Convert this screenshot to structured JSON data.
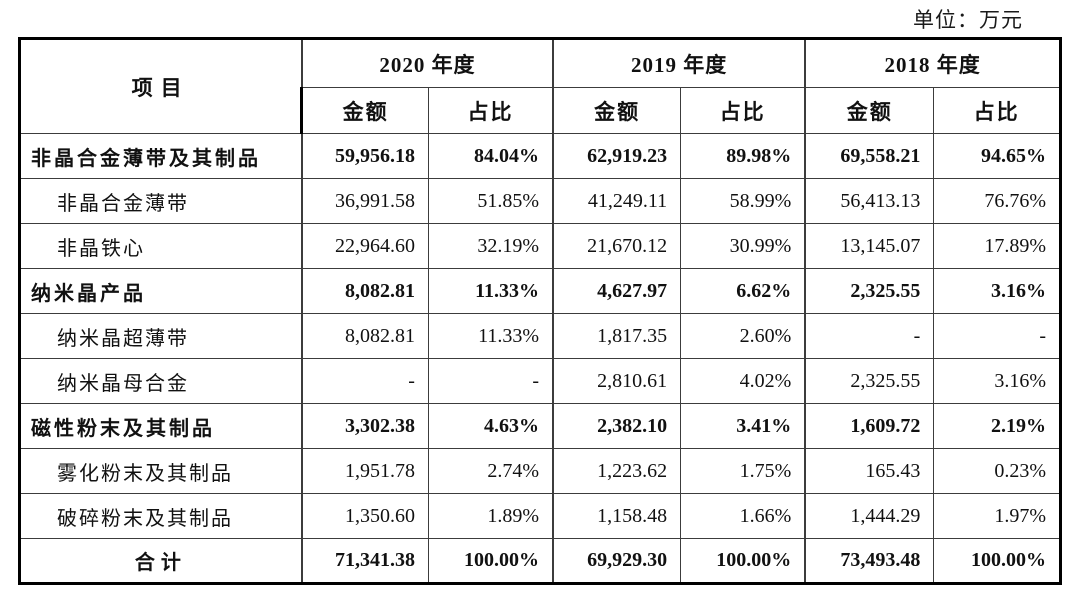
{
  "unit_label": "单位：万元",
  "table": {
    "item_header": "项目",
    "year_groups": [
      {
        "label": "2020 年度"
      },
      {
        "label": "2019 年度"
      },
      {
        "label": "2018 年度"
      }
    ],
    "sub_headers": {
      "amount": "金额",
      "ratio": "占比"
    },
    "rows": [
      {
        "name": "非晶合金薄带及其制品",
        "level": "category",
        "bold": true,
        "values": [
          "59,956.18",
          "84.04%",
          "62,919.23",
          "89.98%",
          "69,558.21",
          "94.65%"
        ]
      },
      {
        "name": "非晶合金薄带",
        "level": "sub",
        "bold": false,
        "values": [
          "36,991.58",
          "51.85%",
          "41,249.11",
          "58.99%",
          "56,413.13",
          "76.76%"
        ]
      },
      {
        "name": "非晶铁心",
        "level": "sub",
        "bold": false,
        "values": [
          "22,964.60",
          "32.19%",
          "21,670.12",
          "30.99%",
          "13,145.07",
          "17.89%"
        ]
      },
      {
        "name": "纳米晶产品",
        "level": "category",
        "bold": true,
        "values": [
          "8,082.81",
          "11.33%",
          "4,627.97",
          "6.62%",
          "2,325.55",
          "3.16%"
        ]
      },
      {
        "name": "纳米晶超薄带",
        "level": "sub",
        "bold": false,
        "values": [
          "8,082.81",
          "11.33%",
          "1,817.35",
          "2.60%",
          "-",
          "-"
        ]
      },
      {
        "name": "纳米晶母合金",
        "level": "sub",
        "bold": false,
        "values": [
          "-",
          "-",
          "2,810.61",
          "4.02%",
          "2,325.55",
          "3.16%"
        ]
      },
      {
        "name": "磁性粉末及其制品",
        "level": "category",
        "bold": true,
        "values": [
          "3,302.38",
          "4.63%",
          "2,382.10",
          "3.41%",
          "1,609.72",
          "2.19%"
        ]
      },
      {
        "name": "雾化粉末及其制品",
        "level": "sub",
        "bold": false,
        "values": [
          "1,951.78",
          "2.74%",
          "1,223.62",
          "1.75%",
          "165.43",
          "0.23%"
        ]
      },
      {
        "name": "破碎粉末及其制品",
        "level": "sub",
        "bold": false,
        "values": [
          "1,350.60",
          "1.89%",
          "1,158.48",
          "1.66%",
          "1,444.29",
          "1.97%"
        ]
      },
      {
        "name": "合计",
        "level": "total",
        "bold": true,
        "values": [
          "71,341.38",
          "100.00%",
          "69,929.30",
          "100.00%",
          "73,493.48",
          "100.00%"
        ]
      }
    ]
  }
}
